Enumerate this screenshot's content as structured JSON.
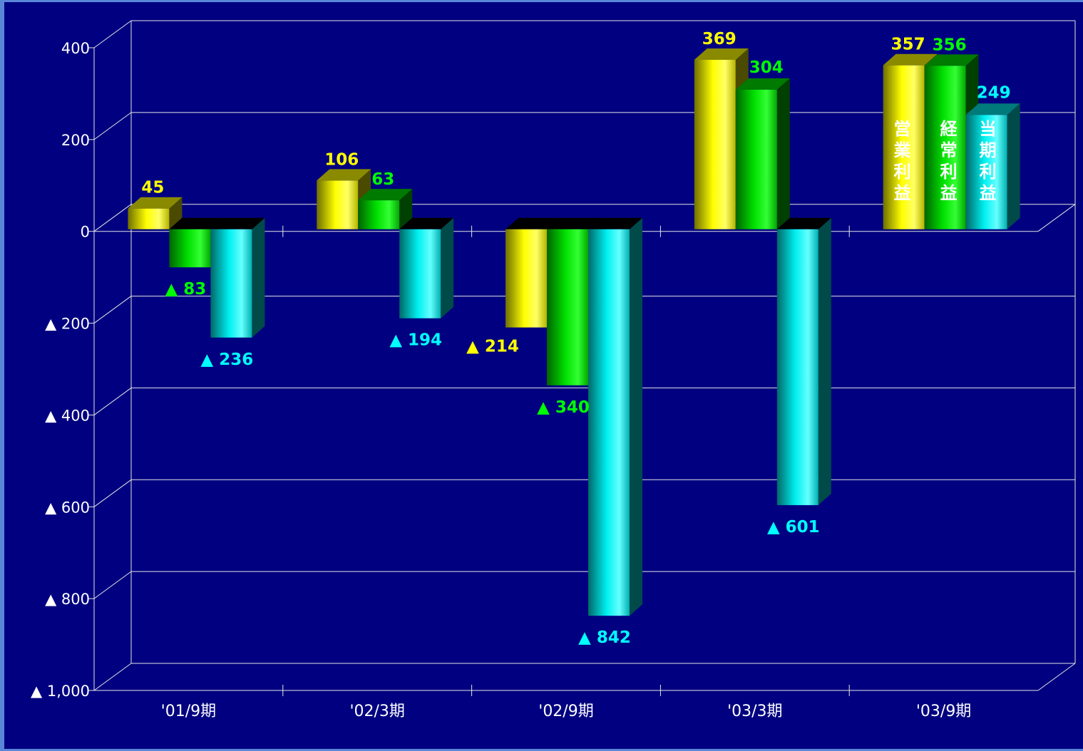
{
  "chart_data": {
    "type": "bar",
    "categories": [
      "'01/9期",
      "'02/3期",
      "'02/9期",
      "'03/3期",
      "'03/9期"
    ],
    "series": [
      {
        "name": "営業利益",
        "values": [
          45,
          106,
          -214,
          369,
          357
        ],
        "color": "#ffff00"
      },
      {
        "name": "経常利益",
        "values": [
          -83,
          63,
          -340,
          304,
          356
        ],
        "color": "#00ff00"
      },
      {
        "name": "当期利益",
        "values": [
          -236,
          -194,
          -842,
          -601,
          249
        ],
        "color": "#00ffff"
      }
    ],
    "data_labels": [
      [
        "45",
        "▲ 83",
        "▲ 236"
      ],
      [
        "106",
        "63",
        "▲ 194"
      ],
      [
        "▲ 214",
        "▲ 340",
        "▲ 842"
      ],
      [
        "369",
        "304",
        "▲ 601"
      ],
      [
        "357",
        "356",
        "249"
      ]
    ],
    "ylim": [
      -1000,
      400
    ],
    "yticks": [
      400,
      200,
      0,
      -200,
      -400,
      -600,
      -800,
      -1000
    ],
    "ytick_labels": [
      "400",
      "200",
      "0",
      "▲ 200",
      "▲ 400",
      "▲ 600",
      "▲ 800",
      "▲ 1,000"
    ],
    "grid": true,
    "legend_style": "vertical text inside last group bars",
    "background": "#000080"
  }
}
